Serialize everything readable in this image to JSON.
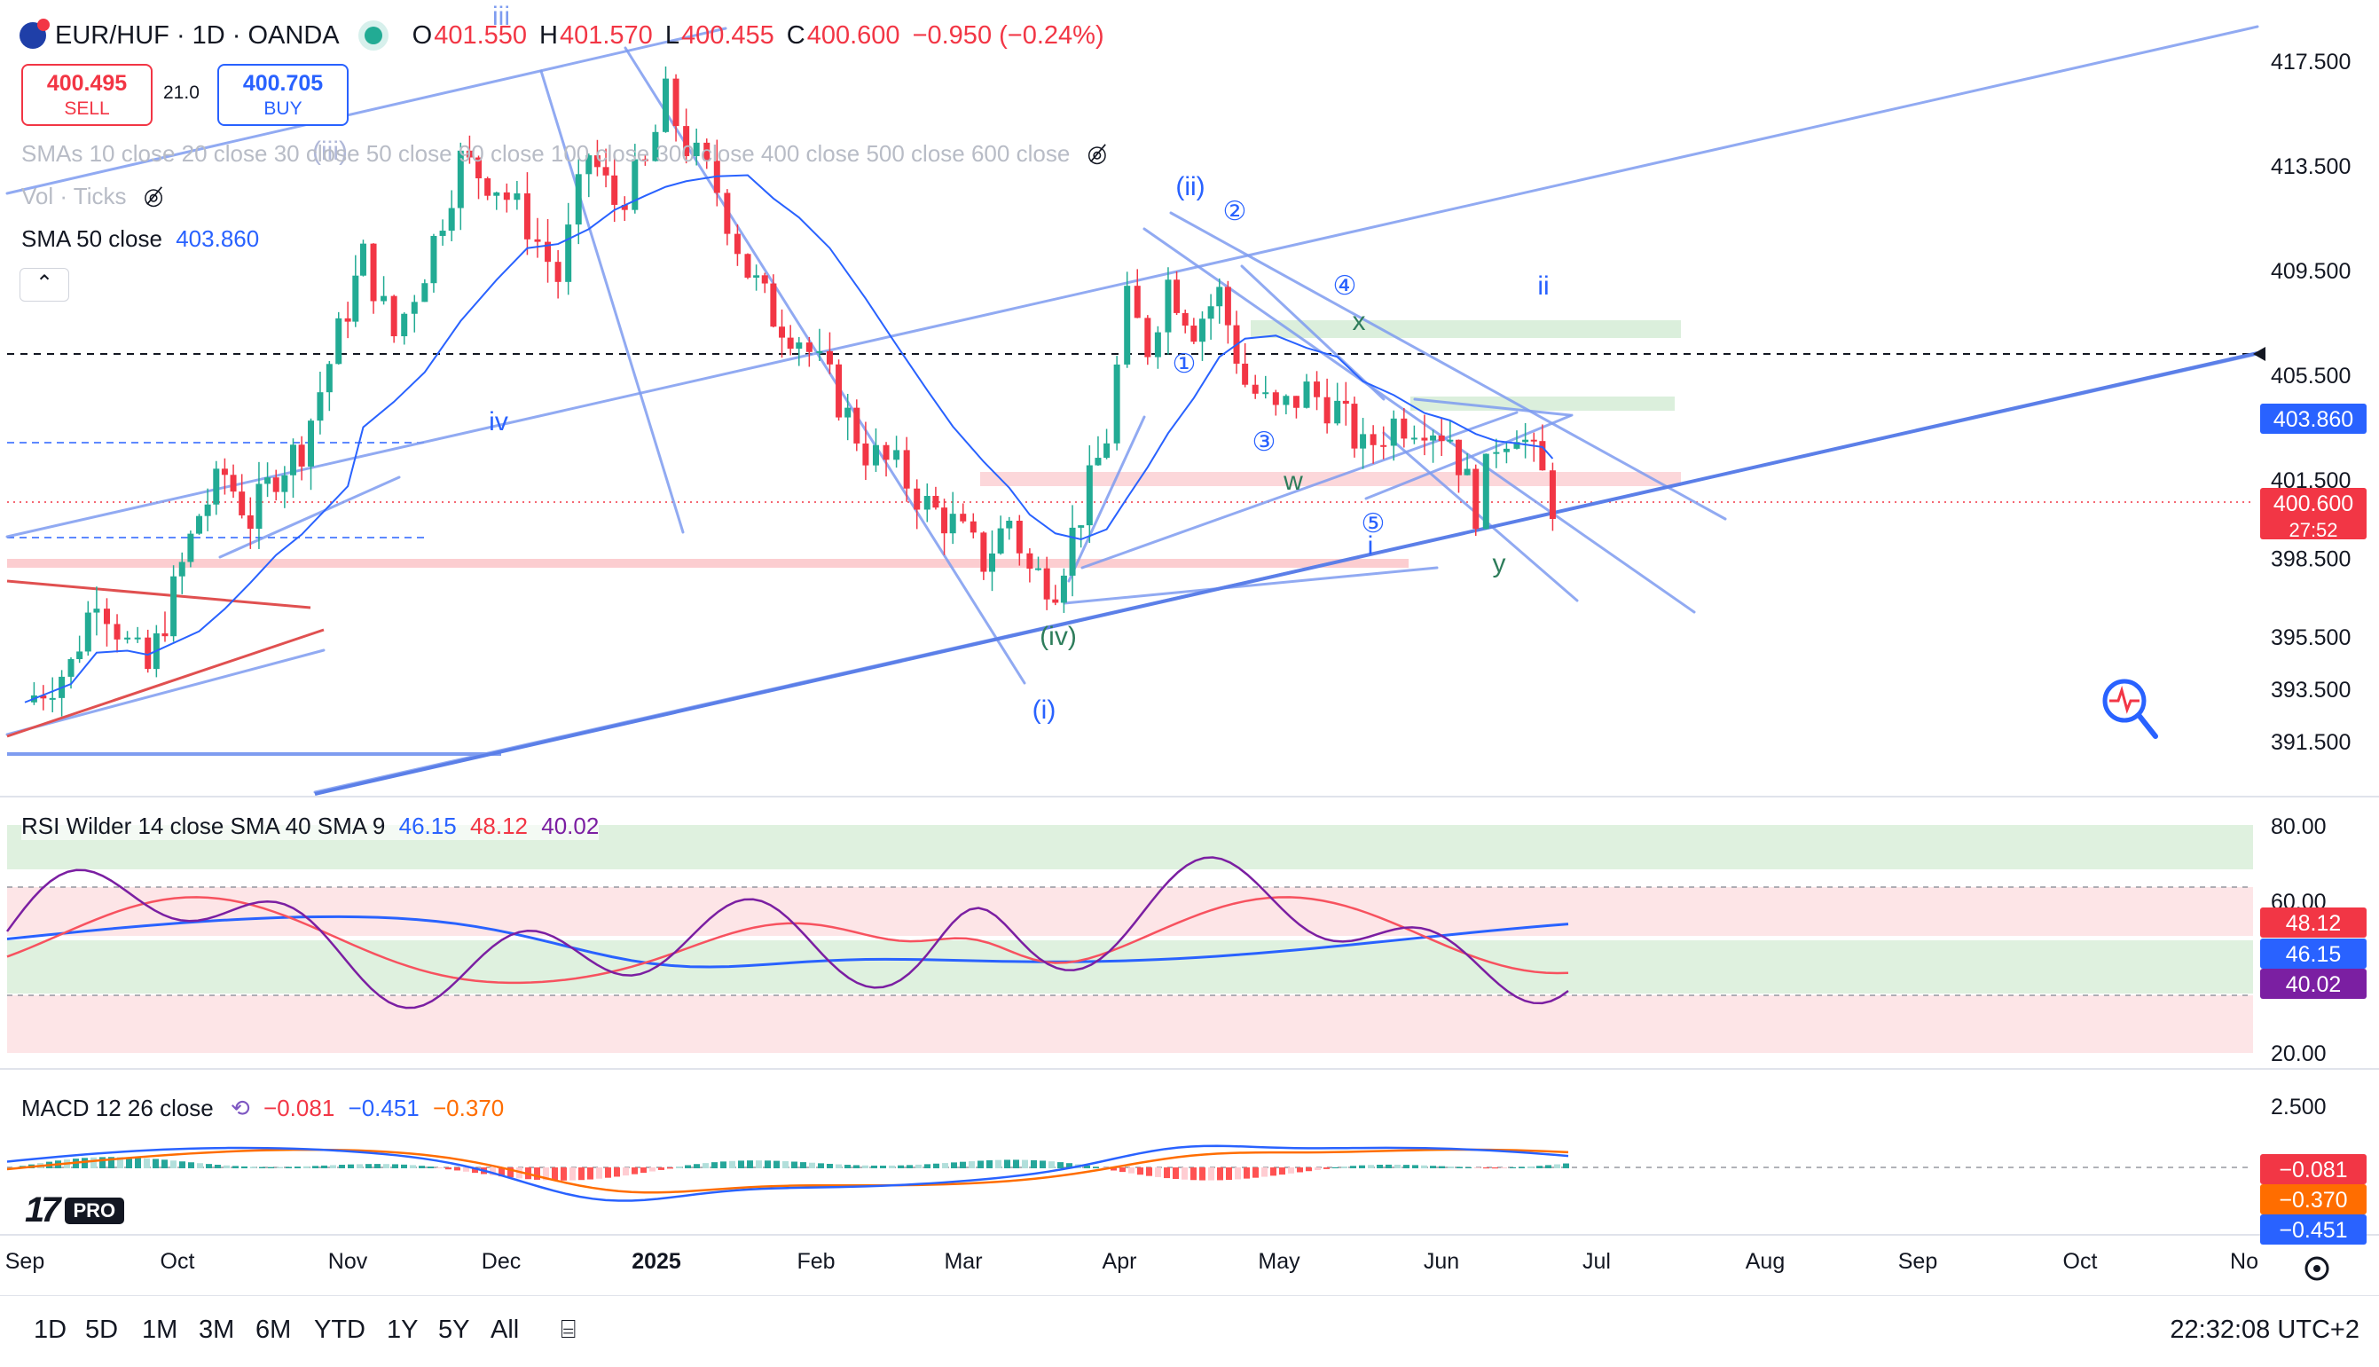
{
  "header": {
    "symbol_line": "EUR/HUF · 1D · OANDA",
    "ohlc": [
      {
        "label": "O",
        "value": "401.550"
      },
      {
        "label": "H",
        "value": "401.570"
      },
      {
        "label": "L",
        "value": "400.455"
      },
      {
        "label": "C",
        "value": "400.600"
      },
      {
        "label": "",
        "value": "−0.950 (−0.24%)"
      }
    ]
  },
  "trade": {
    "sell_price": "400.495",
    "sell_label": "SELL",
    "buy_price": "400.705",
    "buy_label": "BUY",
    "spread": "21.0"
  },
  "legends": {
    "smas": "SMAs 10 close 20 close 30 close 50 close 90 close 100 close 300 close 400 close 500 close 600 close",
    "vol": "Vol · Ticks",
    "sma50_label": "SMA 50 close",
    "sma50_value": "403.860",
    "rsi_label": "RSI Wilder 14 close SMA 40 SMA 9",
    "rsi_values": [
      "46.15",
      "48.12",
      "40.02"
    ],
    "macd_label": "MACD 12 26 close",
    "macd_values": [
      "−0.081",
      "−0.451",
      "−0.370"
    ]
  },
  "colors": {
    "up": "#22ab94",
    "down": "#f23645",
    "sma50": "#2962ff",
    "trend": "#7e9cf0",
    "rsi": "#7b1fa2",
    "rsi_sma40": "#2962ff",
    "rsi_sma9": "#f7525f",
    "macd": "#2962ff",
    "signal": "#ff6d00"
  },
  "chart_data": {
    "type": "candlestick",
    "symbol": "EUR/HUF",
    "interval": "1D",
    "price_axis": {
      "ticks": [
        "417.500",
        "413.500",
        "409.500",
        "405.500",
        "401.500",
        "398.500",
        "395.500",
        "393.500",
        "391.500"
      ]
    },
    "price_labels": {
      "sma50": "403.860",
      "last": "400.600",
      "countdown": "27:52"
    },
    "time_axis": [
      "Sep",
      "Oct",
      "Nov",
      "Dec",
      "2025",
      "Feb",
      "Mar",
      "Apr",
      "May",
      "Jun",
      "Jul",
      "Aug",
      "Sep",
      "Oct",
      "No"
    ],
    "close_path": [
      {
        "date": "2024-09-01",
        "close": 393.0
      },
      {
        "date": "2024-09-10",
        "close": 394.4
      },
      {
        "date": "2024-09-15",
        "close": 397.3
      },
      {
        "date": "2024-09-21",
        "close": 395.2
      },
      {
        "date": "2024-09-25",
        "close": 394.2
      },
      {
        "date": "2024-10-05",
        "close": 400.2
      },
      {
        "date": "2024-10-10",
        "close": 401.7
      },
      {
        "date": "2024-10-15",
        "close": 400.0
      },
      {
        "date": "2024-10-20",
        "close": 401.8
      },
      {
        "date": "2024-10-25",
        "close": 402.8
      },
      {
        "date": "2024-11-03",
        "close": 408.1
      },
      {
        "date": "2024-11-06",
        "close": 410.0
      },
      {
        "date": "2024-11-12",
        "close": 407.0
      },
      {
        "date": "2024-11-18",
        "close": 409.6
      },
      {
        "date": "2024-11-25",
        "close": 413.7
      },
      {
        "date": "2024-12-02",
        "close": 412.8
      },
      {
        "date": "2024-12-08",
        "close": 411.3
      },
      {
        "date": "2024-12-14",
        "close": 409.2
      },
      {
        "date": "2024-12-20",
        "close": 414.0
      },
      {
        "date": "2024-12-25",
        "close": 412.1
      },
      {
        "date": "2024-12-31",
        "close": 413.4
      },
      {
        "date": "2025-01-04",
        "close": 416.1
      },
      {
        "date": "2025-01-08",
        "close": 414.3
      },
      {
        "date": "2025-01-14",
        "close": 412.6
      },
      {
        "date": "2025-01-20",
        "close": 409.5
      },
      {
        "date": "2025-01-25",
        "close": 407.8
      },
      {
        "date": "2025-01-30",
        "close": 407.0
      },
      {
        "date": "2025-02-05",
        "close": 405.2
      },
      {
        "date": "2025-02-12",
        "close": 402.6
      },
      {
        "date": "2025-02-18",
        "close": 401.9
      },
      {
        "date": "2025-02-24",
        "close": 400.5
      },
      {
        "date": "2025-03-01",
        "close": 399.8
      },
      {
        "date": "2025-03-07",
        "close": 398.4
      },
      {
        "date": "2025-03-12",
        "close": 400.0
      },
      {
        "date": "2025-03-16",
        "close": 398.0
      },
      {
        "date": "2025-03-21",
        "close": 397.6
      },
      {
        "date": "2025-03-26",
        "close": 400.3
      },
      {
        "date": "2025-03-31",
        "close": 403.2
      },
      {
        "date": "2025-04-04",
        "close": 408.2
      },
      {
        "date": "2025-04-08",
        "close": 406.6
      },
      {
        "date": "2025-04-12",
        "close": 409.1
      },
      {
        "date": "2025-04-17",
        "close": 407.4
      },
      {
        "date": "2025-04-22",
        "close": 408.6
      },
      {
        "date": "2025-04-27",
        "close": 405.2
      },
      {
        "date": "2025-05-03",
        "close": 404.0
      },
      {
        "date": "2025-05-09",
        "close": 404.9
      },
      {
        "date": "2025-05-15",
        "close": 404.2
      },
      {
        "date": "2025-05-20",
        "close": 402.6
      },
      {
        "date": "2025-05-26",
        "close": 403.7
      },
      {
        "date": "2025-06-01",
        "close": 403.8
      },
      {
        "date": "2025-06-06",
        "close": 403.2
      },
      {
        "date": "2025-06-11",
        "close": 400.4
      },
      {
        "date": "2025-06-15",
        "close": 403.0
      },
      {
        "date": "2025-06-19",
        "close": 403.6
      },
      {
        "date": "2025-06-24",
        "close": 401.6
      },
      {
        "date": "2025-06-26",
        "close": 400.6
      }
    ],
    "rsi_axis": {
      "ticks": [
        "80.00",
        "60.00",
        "20.00"
      ],
      "labels": [
        "48.12",
        "46.15",
        "40.02"
      ]
    },
    "macd_axis": {
      "ticks": [
        "2.500"
      ],
      "labels": [
        "−0.081",
        "−0.370",
        "−0.451"
      ]
    },
    "wave_labels": [
      "iii",
      "(iii)",
      "iv",
      "(ii)",
      "②",
      "④",
      "x",
      "ii",
      "①",
      "③",
      "w",
      "⑤",
      "i",
      "y",
      "(iv)",
      "(i)"
    ]
  },
  "toolbar": {
    "timeframes": [
      "1D",
      "5D",
      "1M",
      "3M",
      "6M",
      "YTD",
      "1Y",
      "5Y",
      "All"
    ],
    "clock": "22:32:08 UTC+2"
  },
  "logo": {
    "pro": "PRO"
  }
}
